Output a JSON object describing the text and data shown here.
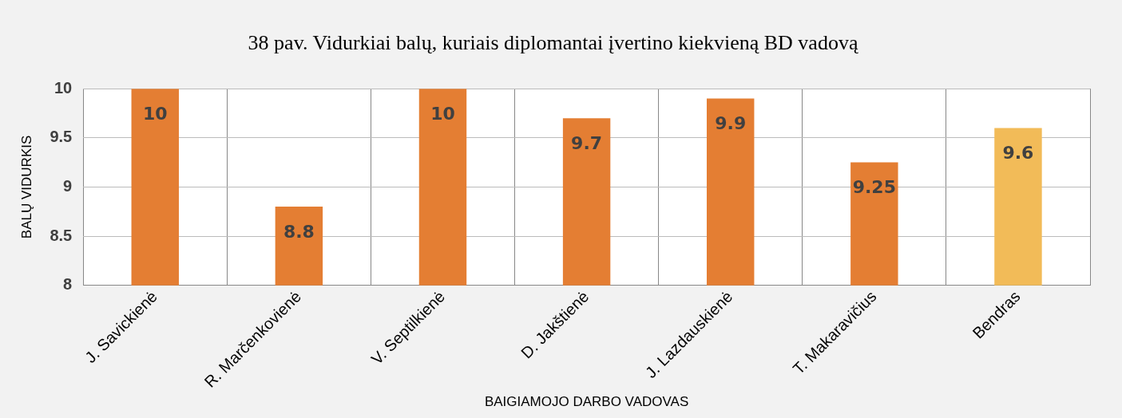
{
  "chart_data": {
    "type": "bar",
    "title": "38 pav. Vidurkiai balų, kuriais diplomantai įvertino kiekvieną BD vadovą",
    "xlabel": "BAIGIAMOJO DARBO VADOVAS",
    "ylabel": "BALŲ VIDURKIS",
    "categories": [
      "J. Savickienė",
      "R. Marčenkovienė",
      "V. Septilkienė",
      "D. Jakštienė",
      "J. Lazdauskienė",
      "T. Makaravičius",
      "Bendras"
    ],
    "values": [
      10,
      8.8,
      10,
      9.7,
      9.9,
      9.25,
      9.6
    ],
    "colors": [
      "#e47e33",
      "#e47e33",
      "#e47e33",
      "#e47e33",
      "#e47e33",
      "#e47e33",
      "#f2bb58"
    ],
    "ylim": [
      8,
      10
    ],
    "yticks": [
      8,
      8.5,
      9,
      9.5,
      10
    ],
    "grid": true,
    "data_labels": true,
    "legend": false
  }
}
